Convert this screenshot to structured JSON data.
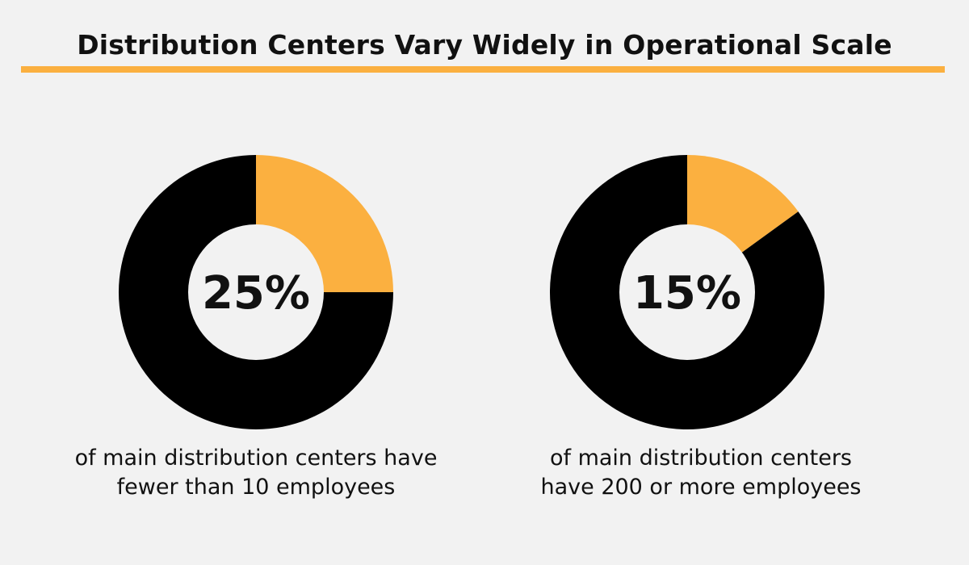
{
  "title": "Distribution Centers Vary Widely in Operational Scale",
  "colors": {
    "background": "#f2f2f2",
    "accent": "#fbb040",
    "remainder": "#000000",
    "center": "#f2f2f2",
    "text": "#111111"
  },
  "chart_data": [
    {
      "type": "pie",
      "style": "donut",
      "center_label": "25%",
      "slices": [
        {
          "label": "fewer than 10 employees",
          "value": 25,
          "color": "#fbb040"
        },
        {
          "label": "other",
          "value": 75,
          "color": "#000000"
        }
      ],
      "caption": {
        "line1": "of main distribution centers have",
        "line2": "fewer than 10 employees"
      }
    },
    {
      "type": "pie",
      "style": "donut",
      "center_label": "15%",
      "slices": [
        {
          "label": "200 or more employees",
          "value": 15,
          "color": "#fbb040"
        },
        {
          "label": "other",
          "value": 85,
          "color": "#000000"
        }
      ],
      "caption": {
        "line1": "of main distribution centers",
        "line2": "have 200 or more employees"
      }
    }
  ]
}
